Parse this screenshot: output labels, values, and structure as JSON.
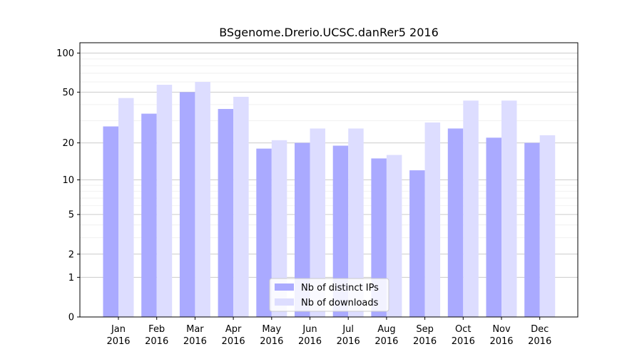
{
  "chart_data": {
    "type": "bar",
    "title": "BSgenome.Drerio.UCSC.danRer5 2016",
    "xlabel": "",
    "ylabel": "",
    "y_scale": "log1p",
    "ylim": [
      0,
      120
    ],
    "grid": true,
    "legend_position": "bottom-center",
    "yticks": [
      0,
      1,
      2,
      5,
      10,
      20,
      50,
      100
    ],
    "categories": [
      [
        "Jan",
        "2016"
      ],
      [
        "Feb",
        "2016"
      ],
      [
        "Mar",
        "2016"
      ],
      [
        "Apr",
        "2016"
      ],
      [
        "May",
        "2016"
      ],
      [
        "Jun",
        "2016"
      ],
      [
        "Jul",
        "2016"
      ],
      [
        "Aug",
        "2016"
      ],
      [
        "Sep",
        "2016"
      ],
      [
        "Oct",
        "2016"
      ],
      [
        "Nov",
        "2016"
      ],
      [
        "Dec",
        "2016"
      ]
    ],
    "series": [
      {
        "name": "Nb of distinct IPs",
        "color": "#aaaaff",
        "values": [
          27,
          34,
          50,
          37,
          18,
          20,
          19,
          15,
          12,
          26,
          22,
          20
        ]
      },
      {
        "name": "Nb of downloads",
        "color": "#ddddff",
        "values": [
          45,
          57,
          60,
          46,
          21,
          26,
          26,
          16,
          29,
          43,
          43,
          23
        ]
      }
    ]
  }
}
